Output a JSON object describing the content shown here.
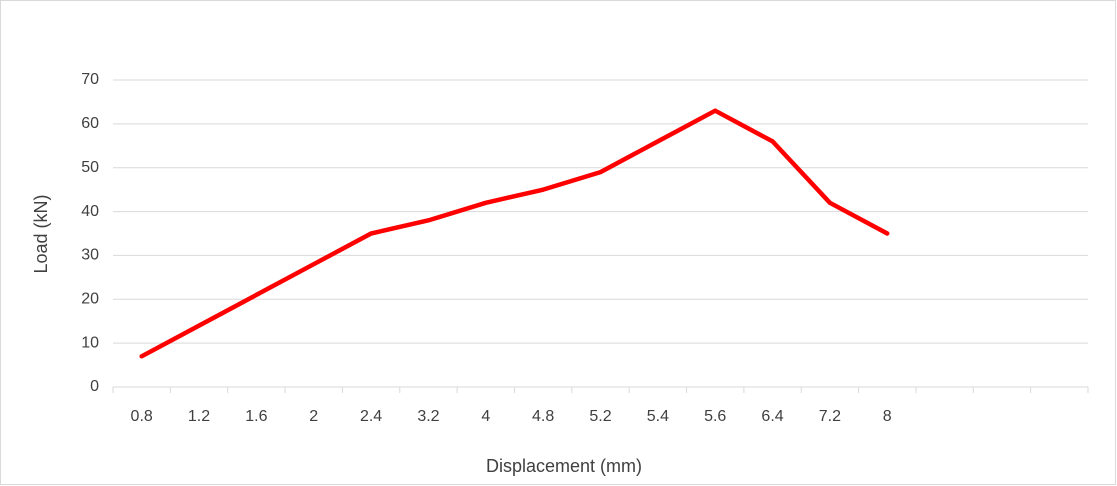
{
  "chart_data": {
    "type": "line",
    "x_label": "Displacement (mm)",
    "y_label": "Load (kN)",
    "categories": [
      "0.8",
      "1.2",
      "1.6",
      "2",
      "2.4",
      "3.2",
      "4",
      "4.8",
      "5.2",
      "5.4",
      "5.6",
      "6.4",
      "7.2",
      "8",
      null,
      null,
      null
    ],
    "series": [
      {
        "name": "Load",
        "color": "#ff0000",
        "values": [
          7,
          14,
          21,
          28,
          35,
          38,
          42,
          45,
          49,
          56,
          63,
          56,
          42,
          35,
          null,
          null,
          null
        ]
      }
    ],
    "ylim": [
      0,
      70
    ],
    "yticks": [
      0,
      10,
      20,
      30,
      40,
      50,
      60,
      70
    ],
    "grid": true,
    "legend": false
  }
}
